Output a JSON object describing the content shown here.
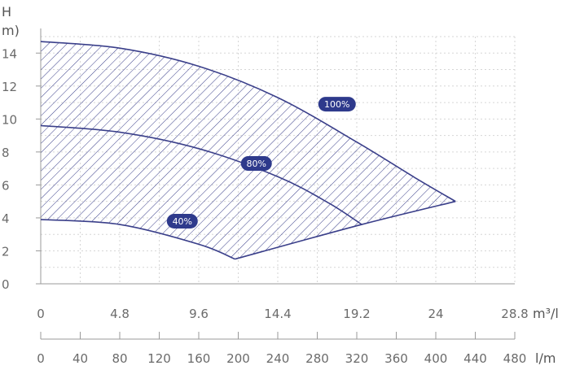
{
  "chart_data": {
    "type": "line",
    "title": "",
    "ylabel": "H",
    "ylabel_unit": "m)",
    "xlabel_top_unit": "m³/l",
    "xlabel_bottom_unit": "l/m",
    "xlim": [
      0,
      28.8
    ],
    "ylim": [
      0,
      15
    ],
    "x_ticks": [
      "0",
      "4.8",
      "9.6",
      "14.4",
      "19.2",
      "24",
      "28.8"
    ],
    "x2_ticks": [
      "0",
      "40",
      "80",
      "120",
      "160",
      "200",
      "240",
      "280",
      "320",
      "360",
      "400",
      "440",
      "480"
    ],
    "y_ticks": [
      "0",
      "2",
      "4",
      "6",
      "8",
      "10",
      "12",
      "14"
    ],
    "grid": true,
    "shaded_region": "hatched operating area between 40% and 100% curves",
    "series": [
      {
        "name": "100%",
        "color": "#3a3f8a",
        "x": [
          0,
          4.8,
          9.6,
          14.4,
          19.2,
          22.8,
          25.2
        ],
        "y": [
          14.7,
          14.3,
          13.2,
          11.3,
          8.6,
          6.4,
          5.0
        ]
      },
      {
        "name": "80%",
        "color": "#3a3f8a",
        "x": [
          0,
          4.8,
          9.6,
          14.4,
          17.5,
          19.5
        ],
        "y": [
          9.6,
          9.2,
          8.2,
          6.5,
          4.9,
          3.6
        ]
      },
      {
        "name": "40%",
        "color": "#3a3f8a",
        "x": [
          0,
          4.8,
          9.6,
          11.8
        ],
        "y": [
          3.9,
          3.6,
          2.4,
          1.5
        ]
      },
      {
        "name": "",
        "color": "#3a3f8a",
        "x": [
          11.8,
          19.5,
          25.2
        ],
        "y": [
          1.5,
          3.6,
          5.0
        ]
      }
    ],
    "badges": [
      {
        "label": "100%",
        "x": 18.0,
        "y": 10.9
      },
      {
        "label": "80%",
        "x": 13.1,
        "y": 7.3
      },
      {
        "label": "40%",
        "x": 8.6,
        "y": 3.8
      }
    ]
  }
}
